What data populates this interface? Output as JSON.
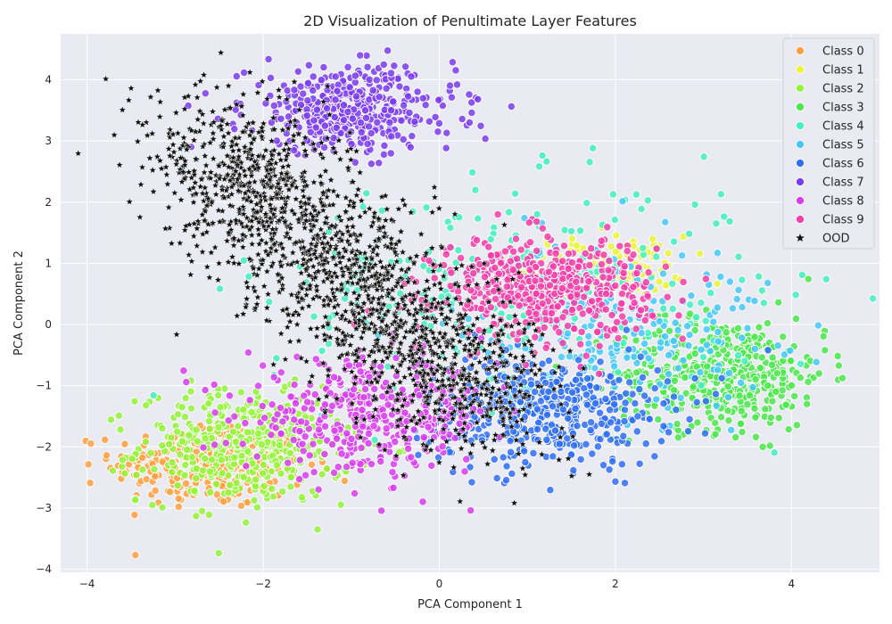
{
  "chart_data": {
    "type": "scatter",
    "title": "2D Visualization of Penultimate Layer Features",
    "xlabel": "PCA Component 1",
    "ylabel": "PCA Component 2",
    "xlim": [
      -4.3,
      5.0
    ],
    "ylim": [
      -4.05,
      4.75
    ],
    "xticks": [
      -4,
      -2,
      0,
      2,
      4
    ],
    "yticks": [
      -4,
      -3,
      -2,
      -1,
      0,
      1,
      2,
      3,
      4
    ],
    "grid": true,
    "background": "#eaeaf2",
    "legend_position": "top-right",
    "note": "Dense point cloud; clusters summarized by center, spread and approximate count per class.",
    "series": [
      {
        "name": "Class 0",
        "color": "#ffa040",
        "marker": "circle",
        "center": [
          -2.6,
          -2.3
        ],
        "spread": [
          0.55,
          0.35
        ],
        "count": 300,
        "shape": "blob"
      },
      {
        "name": "Class 1",
        "color": "#ecf43a",
        "marker": "circle",
        "center": [
          1.9,
          0.95
        ],
        "spread": [
          0.45,
          0.25
        ],
        "count": 120,
        "shape": "blob"
      },
      {
        "name": "Class 2",
        "color": "#94f53a",
        "marker": "circle",
        "center": [
          -2.2,
          -2.0
        ],
        "spread": [
          0.6,
          0.45
        ],
        "count": 420,
        "shape": "blob"
      },
      {
        "name": "Class 3",
        "color": "#4be84b",
        "marker": "circle",
        "center": [
          3.2,
          -0.8
        ],
        "spread": [
          0.6,
          0.45
        ],
        "count": 480,
        "shape": "blob"
      },
      {
        "name": "Class 4",
        "color": "#43f0c0",
        "marker": "circle",
        "center": [
          0.9,
          0.5
        ],
        "spread": [
          1.4,
          0.9
        ],
        "count": 300,
        "shape": "blob"
      },
      {
        "name": "Class 5",
        "color": "#45c8f8",
        "marker": "circle",
        "center": [
          2.0,
          0.0
        ],
        "spread": [
          0.9,
          0.7
        ],
        "count": 220,
        "shape": "blob"
      },
      {
        "name": "Class 6",
        "color": "#2f6ff5",
        "marker": "circle",
        "center": [
          1.2,
          -1.4
        ],
        "spread": [
          0.7,
          0.45
        ],
        "count": 500,
        "shape": "blob"
      },
      {
        "name": "Class 7",
        "color": "#7a3cf0",
        "marker": "circle",
        "center": [
          -1.0,
          3.5
        ],
        "spread": [
          0.6,
          0.35
        ],
        "count": 420,
        "shape": "blob"
      },
      {
        "name": "Class 8",
        "color": "#d83cf0",
        "marker": "circle",
        "center": [
          -0.8,
          -1.5
        ],
        "spread": [
          0.7,
          0.45
        ],
        "count": 420,
        "shape": "blob"
      },
      {
        "name": "Class 9",
        "color": "#f53ca8",
        "marker": "circle",
        "center": [
          1.2,
          0.6
        ],
        "spread": [
          0.6,
          0.4
        ],
        "count": 520,
        "shape": "blob"
      },
      {
        "name": "OOD",
        "color": "#111111",
        "marker": "star",
        "center": [
          -1.6,
          1.0
        ],
        "spread": [
          1.2,
          1.6
        ],
        "count": 1800,
        "shape": "band"
      }
    ]
  }
}
